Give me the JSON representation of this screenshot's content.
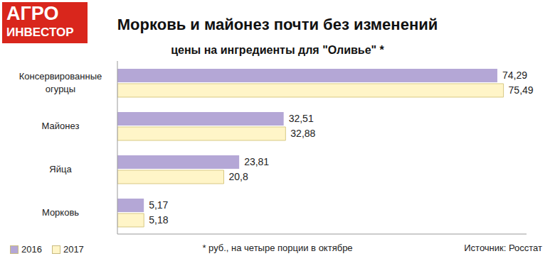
{
  "logo": [
    "АГРО",
    "ИНВЕСТОР"
  ],
  "chart_data": {
    "type": "bar",
    "title": "Морковь и майонез почти без изменений",
    "subtitle": "цены на ингредиенты для \"Оливье\" *",
    "footnote": "* руб., на четыре порции в октябре",
    "source": "Источник: Росстат",
    "orientation": "horizontal",
    "categories": [
      "Консервированные огурцы",
      "Майонез",
      "Яйца",
      "Морковь"
    ],
    "series": [
      {
        "name": "2016",
        "color": "#b4a7d6",
        "values": [
          74.29,
          32.51,
          23.81,
          5.17
        ],
        "value_labels": [
          "74,29",
          "32,51",
          "23,81",
          "5,17"
        ]
      },
      {
        "name": "2017",
        "color": "#fff5c8",
        "values": [
          75.49,
          32.88,
          20.8,
          5.18
        ],
        "value_labels": [
          "75,49",
          "32,88",
          "20,8",
          "5,18"
        ]
      }
    ],
    "xlim": [
      0,
      80
    ],
    "xticks": [],
    "tick_labels": "y",
    "grid": false,
    "legend": "bottom left",
    "data_labels": true
  }
}
